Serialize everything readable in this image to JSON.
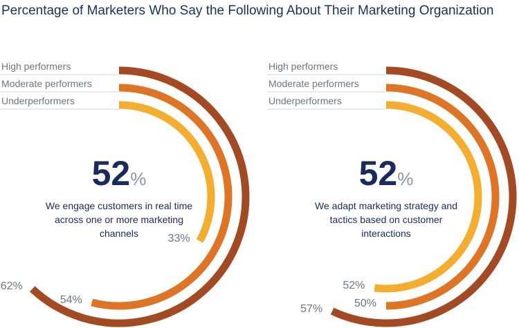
{
  "title": "Percentage of Marketers Who Say the Following About Their Marketing Organization",
  "chart_data": [
    {
      "type": "radial-bar",
      "headline_value": "52",
      "headline_unit": "%",
      "description": "We engage customers in real time across one or more marketing channels",
      "series": [
        {
          "name": "High performers",
          "value": 62,
          "label": "62%",
          "color": "#a34a22"
        },
        {
          "name": "Moderate performers",
          "value": 54,
          "label": "54%",
          "color": "#df7425"
        },
        {
          "name": "Underperformers",
          "value": 33,
          "label": "33%",
          "color": "#f4ad2d"
        }
      ]
    },
    {
      "type": "radial-bar",
      "headline_value": "52",
      "headline_unit": "%",
      "description": "We adapt marketing strategy and tactics based on customer interactions",
      "series": [
        {
          "name": "High performers",
          "value": 57,
          "label": "57%",
          "color": "#a34a22"
        },
        {
          "name": "Moderate performers",
          "value": 50,
          "label": "50%",
          "color": "#df7425"
        },
        {
          "name": "Underperformers",
          "value": 52,
          "label": "52%",
          "color": "#f4ad2d"
        }
      ]
    }
  ]
}
